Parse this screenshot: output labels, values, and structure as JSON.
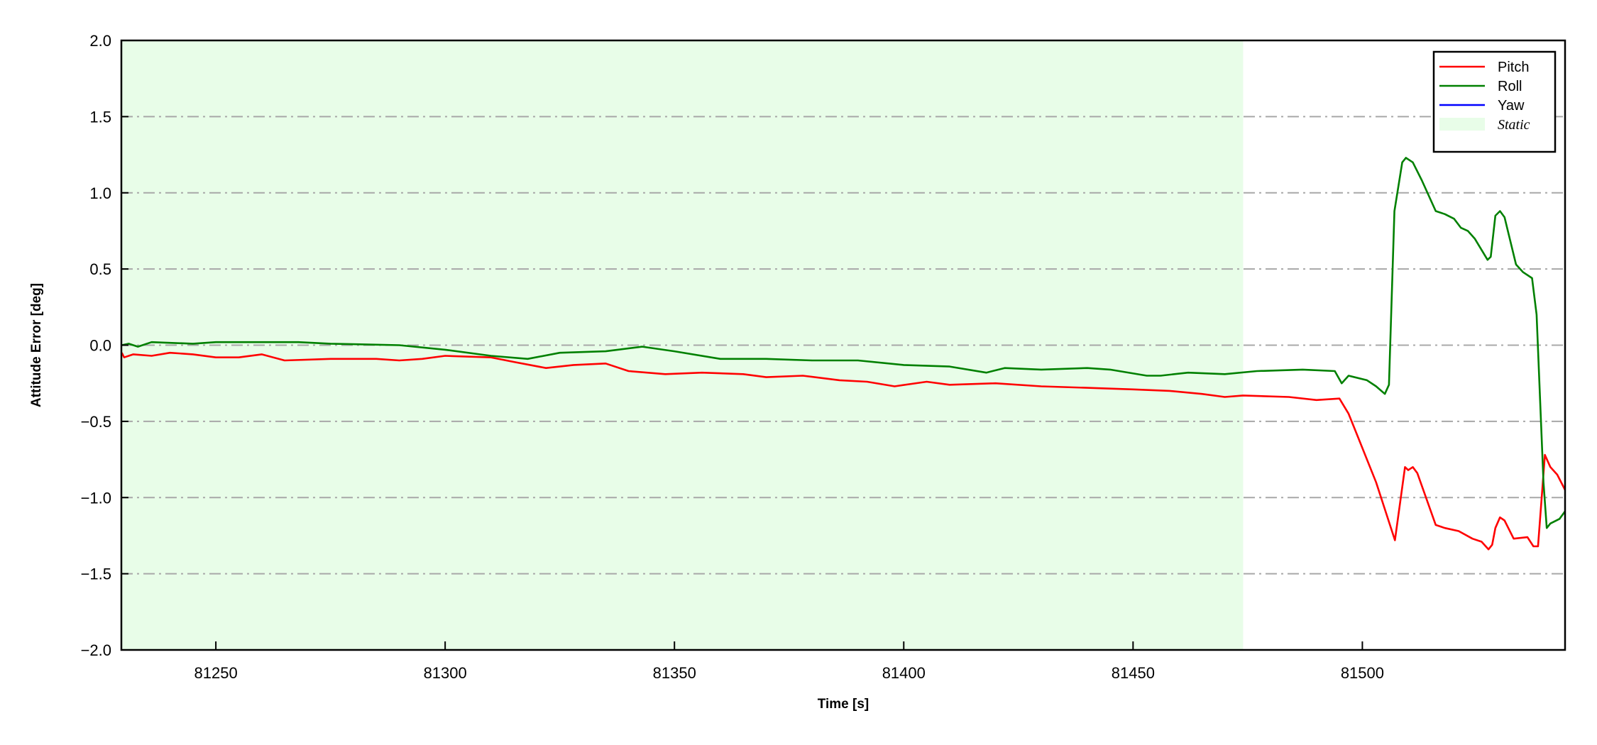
{
  "chart_data": {
    "type": "line",
    "title": "",
    "xlabel": "Time [s]",
    "ylabel": "Attitude Error [deg]",
    "xlim": [
      81229.4,
      81544.2
    ],
    "ylim": [
      -2.0,
      2.0
    ],
    "xticks": [
      81250,
      81300,
      81350,
      81400,
      81450,
      81500
    ],
    "xtick_labels": [
      "81250",
      "81300",
      "81350",
      "81400",
      "81450",
      "81500"
    ],
    "yticks": [
      -2.0,
      -1.5,
      -1.0,
      -0.5,
      0.0,
      0.5,
      1.0,
      1.5,
      2.0
    ],
    "ytick_labels": [
      "−2.0",
      "−1.5",
      "−1.0",
      "−0.5",
      "0.0",
      "0.5",
      "1.0",
      "1.5",
      "2.0"
    ],
    "grid": "horizontal dash-dot",
    "legend_placement": "top-right",
    "static_region": {
      "label": "Static",
      "x": [
        81229.4,
        81474.0
      ],
      "color": "#e8fde8"
    },
    "series": [
      {
        "name": "Pitch",
        "color": "#ff0000",
        "points": [
          [
            81229.5,
            -0.05
          ],
          [
            81230,
            -0.08
          ],
          [
            81232,
            -0.06
          ],
          [
            81236,
            -0.07
          ],
          [
            81240,
            -0.05
          ],
          [
            81245,
            -0.06
          ],
          [
            81250,
            -0.08
          ],
          [
            81255,
            -0.08
          ],
          [
            81260,
            -0.06
          ],
          [
            81265,
            -0.1
          ],
          [
            81275,
            -0.09
          ],
          [
            81285,
            -0.09
          ],
          [
            81290,
            -0.1
          ],
          [
            81295,
            -0.09
          ],
          [
            81300,
            -0.07
          ],
          [
            81310,
            -0.08
          ],
          [
            81315,
            -0.11
          ],
          [
            81322,
            -0.15
          ],
          [
            81328,
            -0.13
          ],
          [
            81335,
            -0.12
          ],
          [
            81340,
            -0.17
          ],
          [
            81348,
            -0.19
          ],
          [
            81356,
            -0.18
          ],
          [
            81365,
            -0.19
          ],
          [
            81370,
            -0.21
          ],
          [
            81378,
            -0.2
          ],
          [
            81386,
            -0.23
          ],
          [
            81392,
            -0.24
          ],
          [
            81398,
            -0.27
          ],
          [
            81405,
            -0.24
          ],
          [
            81410,
            -0.26
          ],
          [
            81420,
            -0.25
          ],
          [
            81430,
            -0.27
          ],
          [
            81440,
            -0.28
          ],
          [
            81450,
            -0.29
          ],
          [
            81458,
            -0.3
          ],
          [
            81465,
            -0.32
          ],
          [
            81470,
            -0.34
          ],
          [
            81474,
            -0.33
          ],
          [
            81484,
            -0.34
          ],
          [
            81490,
            -0.36
          ],
          [
            81495,
            -0.35
          ],
          [
            81497,
            -0.45
          ],
          [
            81499,
            -0.6
          ],
          [
            81503,
            -0.9
          ],
          [
            81507.1,
            -1.28
          ],
          [
            81509.3,
            -0.8
          ],
          [
            81510,
            -0.82
          ],
          [
            81511,
            -0.8
          ],
          [
            81512,
            -0.84
          ],
          [
            81516,
            -1.18
          ],
          [
            81518,
            -1.2
          ],
          [
            81521,
            -1.22
          ],
          [
            81524,
            -1.27
          ],
          [
            81526,
            -1.29
          ],
          [
            81527.5,
            -1.34
          ],
          [
            81528.3,
            -1.31
          ],
          [
            81529,
            -1.2
          ],
          [
            81530,
            -1.13
          ],
          [
            81531,
            -1.15
          ],
          [
            81533,
            -1.27
          ],
          [
            81536,
            -1.26
          ],
          [
            81537.3,
            -1.32
          ],
          [
            81538.3,
            -1.32
          ],
          [
            81539.8,
            -0.72
          ],
          [
            81541,
            -0.8
          ],
          [
            81542.5,
            -0.85
          ],
          [
            81544.2,
            -0.95
          ]
        ]
      },
      {
        "name": "Roll",
        "color": "#008000",
        "points": [
          [
            81229.5,
            0.0
          ],
          [
            81231,
            0.01
          ],
          [
            81233,
            -0.01
          ],
          [
            81236,
            0.02
          ],
          [
            81245,
            0.01
          ],
          [
            81250,
            0.02
          ],
          [
            81260,
            0.02
          ],
          [
            81268,
            0.02
          ],
          [
            81275,
            0.01
          ],
          [
            81290,
            0.0
          ],
          [
            81300,
            -0.03
          ],
          [
            81310,
            -0.07
          ],
          [
            81318,
            -0.09
          ],
          [
            81325,
            -0.05
          ],
          [
            81335,
            -0.04
          ],
          [
            81343,
            -0.01
          ],
          [
            81350,
            -0.04
          ],
          [
            81360,
            -0.09
          ],
          [
            81370,
            -0.09
          ],
          [
            81380,
            -0.1
          ],
          [
            81390,
            -0.1
          ],
          [
            81400,
            -0.13
          ],
          [
            81410,
            -0.14
          ],
          [
            81418,
            -0.18
          ],
          [
            81422,
            -0.15
          ],
          [
            81430,
            -0.16
          ],
          [
            81440,
            -0.15
          ],
          [
            81445,
            -0.16
          ],
          [
            81453,
            -0.2
          ],
          [
            81456,
            -0.2
          ],
          [
            81462,
            -0.18
          ],
          [
            81470,
            -0.19
          ],
          [
            81477,
            -0.17
          ],
          [
            81487,
            -0.16
          ],
          [
            81494,
            -0.17
          ],
          [
            81495.5,
            -0.25
          ],
          [
            81497,
            -0.2
          ],
          [
            81501,
            -0.23
          ],
          [
            81503,
            -0.27
          ],
          [
            81504.9,
            -0.32
          ],
          [
            81505.8,
            -0.26
          ],
          [
            81507,
            0.88
          ],
          [
            81508.7,
            1.2
          ],
          [
            81509.5,
            1.23
          ],
          [
            81511,
            1.2
          ],
          [
            81513,
            1.08
          ],
          [
            81516,
            0.88
          ],
          [
            81518,
            0.86
          ],
          [
            81520,
            0.83
          ],
          [
            81521.5,
            0.77
          ],
          [
            81523,
            0.75
          ],
          [
            81524.5,
            0.7
          ],
          [
            81527.3,
            0.56
          ],
          [
            81528,
            0.58
          ],
          [
            81529,
            0.85
          ],
          [
            81530,
            0.88
          ],
          [
            81531,
            0.84
          ],
          [
            81533.5,
            0.53
          ],
          [
            81535,
            0.48
          ],
          [
            81537,
            0.44
          ],
          [
            81538,
            0.2
          ],
          [
            81539.5,
            -0.9
          ],
          [
            81540.2,
            -1.2
          ],
          [
            81541,
            -1.17
          ],
          [
            81543,
            -1.14
          ],
          [
            81544.2,
            -1.09
          ]
        ]
      },
      {
        "name": "Yaw",
        "color": "#0000ff",
        "points": []
      }
    ]
  }
}
